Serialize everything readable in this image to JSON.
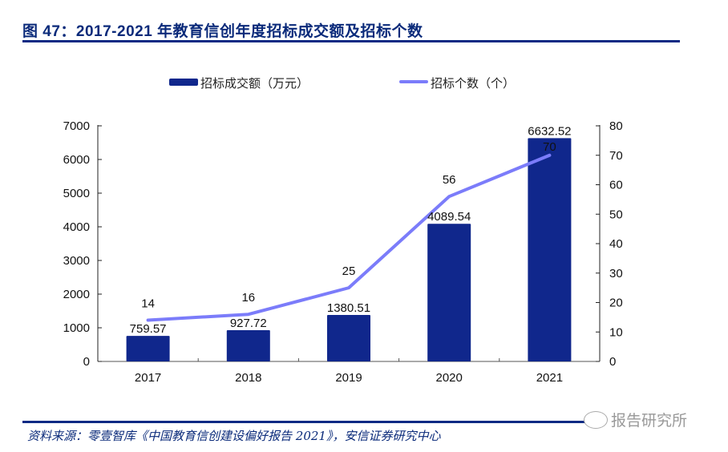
{
  "header": {
    "title": "图 47：2017-2021 年教育信创年度招标成交额及招标个数"
  },
  "footer": {
    "source": "资料来源：零壹智库《中国教育信创建设偏好报告 2021》，安信证券研究中心",
    "watermark": "报告研究所"
  },
  "colors": {
    "bar": "#10278c",
    "line": "#7b7cfa",
    "rule": "#0d2a84",
    "title": "#0a2a7a"
  },
  "chart_data": {
    "type": "bar",
    "title": "2017-2021 年教育信创年度招标成交额及招标个数",
    "categories": [
      "2017",
      "2018",
      "2019",
      "2020",
      "2021"
    ],
    "series": [
      {
        "name": "招标成交额（万元）",
        "type": "bar",
        "axis": "left",
        "values": [
          759.57,
          927.72,
          1380.51,
          4089.54,
          6632.52
        ],
        "labels": [
          "759.57",
          "927.72",
          "1380.51",
          "4089.54",
          "6632.52"
        ]
      },
      {
        "name": "招标个数（个）",
        "type": "line",
        "axis": "right",
        "values": [
          14,
          16,
          25,
          56,
          70
        ],
        "labels": [
          "14",
          "16",
          "25",
          "56",
          "70"
        ]
      }
    ],
    "y_left": {
      "lim": [
        0,
        7000
      ],
      "ticks": [
        "0",
        "1000",
        "2000",
        "3000",
        "4000",
        "5000",
        "6000",
        "7000"
      ]
    },
    "y_right": {
      "lim": [
        0,
        80
      ],
      "ticks": [
        "0",
        "10",
        "20",
        "30",
        "40",
        "50",
        "60",
        "70",
        "80"
      ]
    },
    "legend": {
      "position": "top",
      "items": [
        "招标成交额（万元）",
        "招标个数（个）"
      ]
    },
    "grid": false
  }
}
